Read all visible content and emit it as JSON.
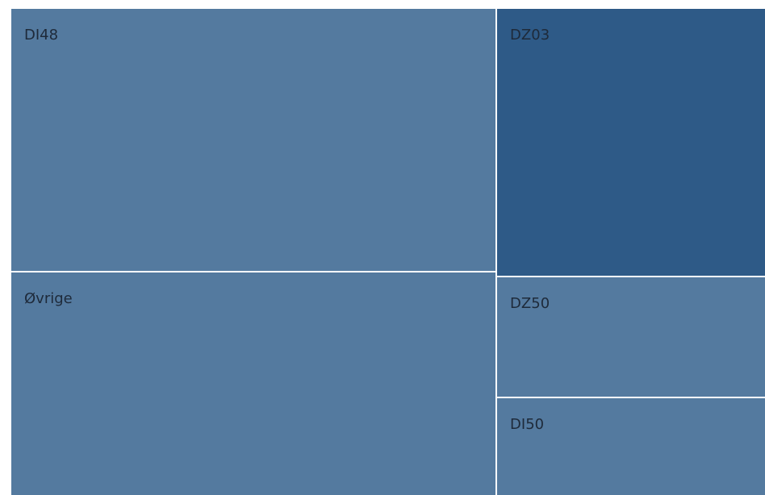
{
  "chart_data": {
    "type": "treemap",
    "title": "",
    "items": [
      {
        "label": "DI48",
        "value": 30.1,
        "color": "#547a9f"
      },
      {
        "label": "Øvrige",
        "value": 25.4,
        "color": "#547a9f"
      },
      {
        "label": "DZ03",
        "value": 16.9,
        "color": "#2e5a87"
      },
      {
        "label": "DZ50",
        "value": 7.6,
        "color": "#547a9f"
      },
      {
        "label": "DI50",
        "value": 6.1,
        "color": "#547a9f"
      }
    ],
    "border_color": "#ffffff"
  }
}
